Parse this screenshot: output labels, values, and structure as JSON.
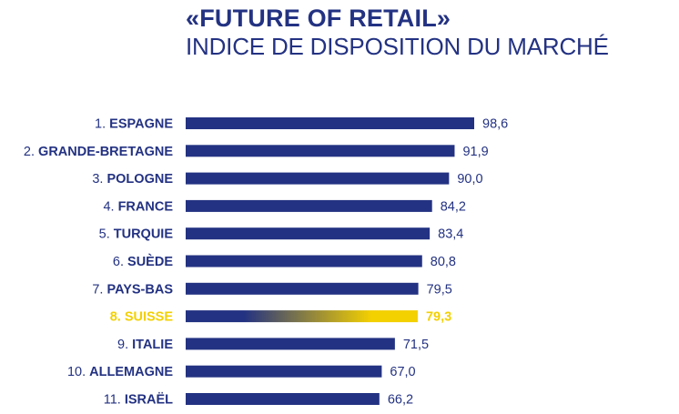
{
  "title": "«FUTURE OF RETAIL»",
  "subtitle": "INDICE DE DISPOSITION DU MARCHÉ",
  "colors": {
    "bar": "#233282",
    "highlight": "#f3d000",
    "text": "#233282"
  },
  "chart_data": {
    "type": "bar",
    "orientation": "horizontal",
    "title": "«FUTURE OF RETAIL»",
    "subtitle": "INDICE DE DISPOSITION DU MARCHÉ",
    "xlabel": "",
    "ylabel": "",
    "grid": false,
    "highlight_index": 7,
    "xlim": [
      0,
      98.6
    ],
    "ranks": [
      "1.",
      "2.",
      "3.",
      "4.",
      "5.",
      "6.",
      "7.",
      "8.",
      "9.",
      "10.",
      "11."
    ],
    "categories": [
      "ESPAGNE",
      "GRANDE-BRETAGNE",
      "POLOGNE",
      "FRANCE",
      "TURQUIE",
      "SUÈDE",
      "PAYS-BAS",
      "SUISSE",
      "ITALIE",
      "ALLEMAGNE",
      "ISRAËL"
    ],
    "values": [
      98.6,
      91.9,
      90.0,
      84.2,
      83.4,
      80.8,
      79.5,
      79.3,
      71.5,
      67.0,
      66.2
    ],
    "value_labels": [
      "98,6",
      "91,9",
      "90,0",
      "84,2",
      "83,4",
      "80,8",
      "79,5",
      "79,3",
      "71,5",
      "67,0",
      "66,2"
    ]
  }
}
